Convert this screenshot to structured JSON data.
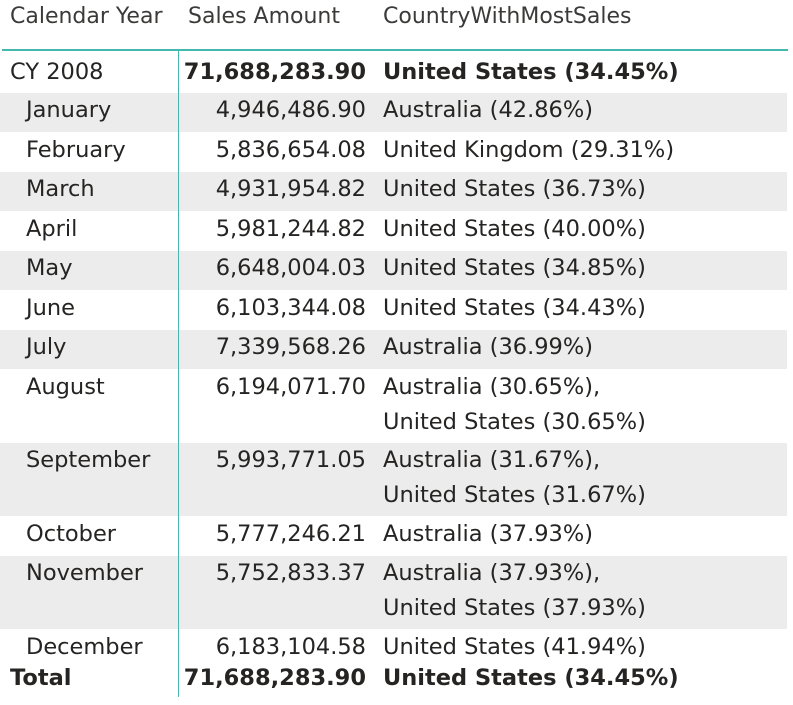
{
  "headers": {
    "calendar_year": "Calendar Year",
    "sales_amount": "Sales Amount",
    "country": "CountryWithMostSales"
  },
  "year_row": {
    "label": "CY 2008",
    "amount": "71,688,283.90",
    "country": "United States (34.45%)"
  },
  "months": [
    {
      "label": "January",
      "amount": "4,946,486.90",
      "country": [
        "Australia (42.86%)"
      ]
    },
    {
      "label": "February",
      "amount": "5,836,654.08",
      "country": [
        "United Kingdom (29.31%)"
      ]
    },
    {
      "label": "March",
      "amount": "4,931,954.82",
      "country": [
        "United States (36.73%)"
      ]
    },
    {
      "label": "April",
      "amount": "5,981,244.82",
      "country": [
        "United States (40.00%)"
      ]
    },
    {
      "label": "May",
      "amount": "6,648,004.03",
      "country": [
        "United States (34.85%)"
      ]
    },
    {
      "label": "June",
      "amount": "6,103,344.08",
      "country": [
        "United States (34.43%)"
      ]
    },
    {
      "label": "July",
      "amount": "7,339,568.26",
      "country": [
        "Australia (36.99%)"
      ]
    },
    {
      "label": "August",
      "amount": "6,194,071.70",
      "country": [
        "Australia (30.65%),",
        "United States (30.65%)"
      ]
    },
    {
      "label": "September",
      "amount": "5,993,771.05",
      "country": [
        "Australia (31.67%),",
        "United States (31.67%)"
      ]
    },
    {
      "label": "October",
      "amount": "5,777,246.21",
      "country": [
        "Australia (37.93%)"
      ]
    },
    {
      "label": "November",
      "amount": "5,752,833.37",
      "country": [
        "Australia (37.93%),",
        "United States (37.93%)"
      ]
    },
    {
      "label": "December",
      "amount": "6,183,104.58",
      "country": [
        "United States (41.94%)"
      ]
    }
  ],
  "total_row": {
    "label": "Total",
    "amount": "71,688,283.90",
    "country": "United States (34.45%)"
  },
  "colors": {
    "accent": "#44b8ac",
    "row_shade": "#ececec",
    "text": "#252423"
  }
}
